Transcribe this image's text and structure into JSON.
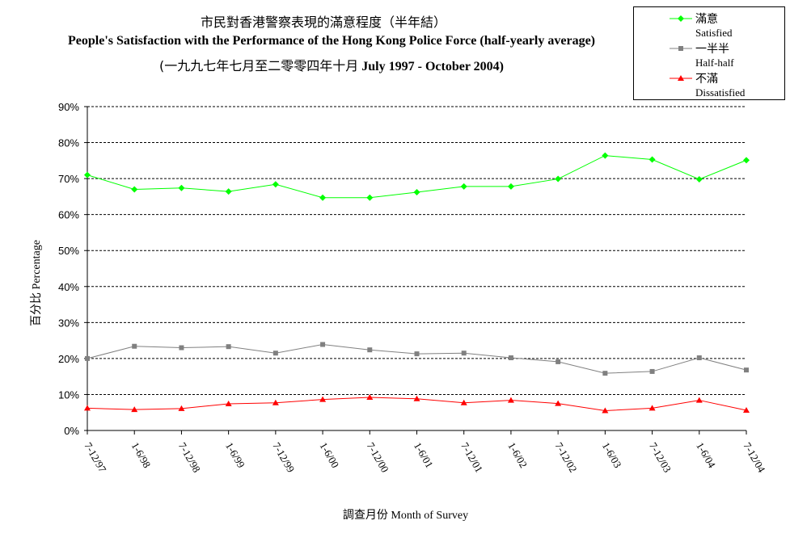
{
  "chart_data": {
    "type": "line",
    "title_zh": "市民對香港警察表現的滿意程度（半年結）",
    "title": "People's Satisfaction with the Performance of the Hong Kong Police Force (half-yearly average)",
    "subtitle_zh": "(一九九七年七月至二零零四年十月",
    "subtitle_en": "July 1997 - October 2004)",
    "xlabel": "調查月份 Month of Survey",
    "ylabel": "百分比 Percentage",
    "ylim": [
      0,
      90
    ],
    "yticks": [
      "0%",
      "10%",
      "20%",
      "30%",
      "40%",
      "50%",
      "60%",
      "70%",
      "80%",
      "90%"
    ],
    "grid": "horizontal dashed",
    "legend_position": "top-right",
    "categories": [
      "7-12/97",
      "1-6/98",
      "7-12/98",
      "1-6/99",
      "7-12/99",
      "1-6/00",
      "7-12/00",
      "1-6/01",
      "7-12/01",
      "1-6/02",
      "7-12/02",
      "1-6/03",
      "7-12/03",
      "1-6/04",
      "7-12/04"
    ],
    "series": [
      {
        "name_zh": "滿意",
        "name_en": "Satisfied",
        "color": "#00ff00",
        "marker": "diamond",
        "values": [
          71.0,
          67.0,
          67.4,
          66.4,
          68.4,
          64.7,
          64.7,
          66.2,
          67.8,
          67.8,
          69.9,
          76.4,
          75.3,
          69.8,
          75.1
        ]
      },
      {
        "name_zh": "一半半",
        "name_en": "Half-half",
        "color": "#808080",
        "marker": "square",
        "values": [
          20.0,
          23.4,
          23.0,
          23.3,
          21.5,
          23.9,
          22.4,
          21.3,
          21.5,
          20.2,
          19.1,
          15.9,
          16.4,
          20.2,
          16.8
        ]
      },
      {
        "name_zh": "不滿",
        "name_en": "Dissatisfied",
        "color": "#ff0000",
        "marker": "triangle",
        "values": [
          6.2,
          5.8,
          6.1,
          7.4,
          7.7,
          8.6,
          9.2,
          8.8,
          7.7,
          8.4,
          7.5,
          5.5,
          6.2,
          8.4,
          5.6
        ]
      }
    ]
  }
}
